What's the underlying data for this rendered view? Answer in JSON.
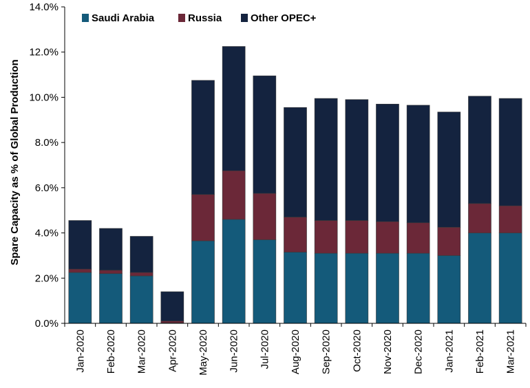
{
  "chart_data": {
    "type": "bar",
    "stacked": true,
    "title": "",
    "xlabel": "",
    "ylabel": "Spare Capacity as % of Global Production",
    "ylim": [
      0,
      14
    ],
    "yticks": [
      "0.0%",
      "2.0%",
      "4.0%",
      "6.0%",
      "8.0%",
      "10.0%",
      "12.0%",
      "14.0%"
    ],
    "grid": false,
    "legend_position": "top-left",
    "categories": [
      "Jan-2020",
      "Feb-2020",
      "Mar-2020",
      "Apr-2020",
      "May-2020",
      "Jun-2020",
      "Jul-2020",
      "Aug-2020",
      "Sep-2020",
      "Oct-2020",
      "Nov-2020",
      "Dec-2020",
      "Jan-2021",
      "Feb-2021",
      "Mar-2021"
    ],
    "series": [
      {
        "name": "Saudi Arabia",
        "color": "#145a7a",
        "values": [
          2.25,
          2.2,
          2.1,
          0.02,
          3.65,
          4.6,
          3.7,
          3.15,
          3.1,
          3.1,
          3.1,
          3.1,
          3.0,
          4.0,
          4.0
        ]
      },
      {
        "name": "Russia",
        "color": "#6b2838",
        "values": [
          0.15,
          0.15,
          0.15,
          0.08,
          2.05,
          2.15,
          2.05,
          1.55,
          1.45,
          1.45,
          1.4,
          1.35,
          1.25,
          1.3,
          1.2
        ]
      },
      {
        "name": "Other OPEC+",
        "color": "#14233f",
        "values": [
          2.15,
          1.85,
          1.6,
          1.3,
          5.05,
          5.5,
          5.2,
          4.85,
          5.4,
          5.35,
          5.2,
          5.2,
          5.1,
          4.75,
          4.75
        ]
      }
    ]
  }
}
